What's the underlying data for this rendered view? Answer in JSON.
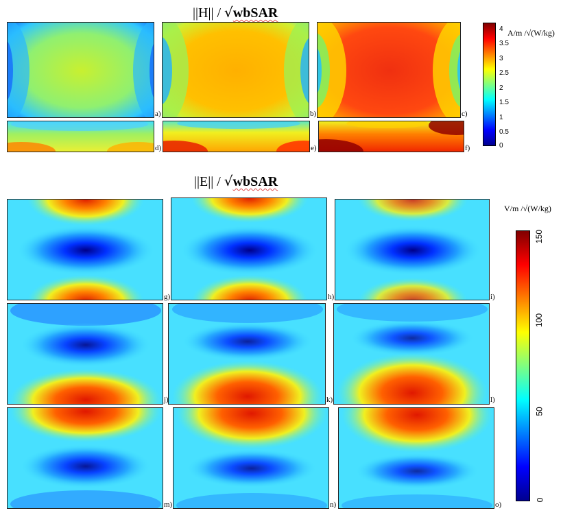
{
  "h_section": {
    "title_prefix": "||H|| / ",
    "title_sqrt": "√",
    "title_bold": "wbSAR",
    "colorbar": {
      "unit": "A/m /√(W/kg)",
      "ticks": [
        "4",
        "3.5",
        "3",
        "2.5",
        "2",
        "1.5",
        "1",
        "0.5",
        "0"
      ]
    },
    "panels": [
      {
        "label": "a)",
        "level": 2.1,
        "shape": "h-large"
      },
      {
        "label": "b)",
        "level": 2.9,
        "shape": "h-large"
      },
      {
        "label": "c)",
        "level": 3.5,
        "shape": "h-large"
      },
      {
        "label": "d)",
        "level": 2.0,
        "shape": "h-strip"
      },
      {
        "label": "e)",
        "level": 2.7,
        "shape": "h-strip"
      },
      {
        "label": "f)",
        "level": 3.3,
        "shape": "h-strip"
      }
    ]
  },
  "e_section": {
    "title_prefix": "||E|| / ",
    "title_sqrt": "√",
    "title_bold": "wbSAR",
    "colorbar": {
      "unit": "V/m /√(W/kg)",
      "ticks": [
        "150",
        "100",
        "50",
        "0"
      ]
    },
    "panels": [
      {
        "label": "g)",
        "pattern": "top-bottom"
      },
      {
        "label": "h)",
        "pattern": "top-bottom"
      },
      {
        "label": "i)",
        "pattern": "top-bottom"
      },
      {
        "label": "j)",
        "pattern": "bottom"
      },
      {
        "label": "k)",
        "pattern": "bottom"
      },
      {
        "label": "l)",
        "pattern": "bottom"
      },
      {
        "label": "m)",
        "pattern": "top"
      },
      {
        "label": "n)",
        "pattern": "top"
      },
      {
        "label": "o)",
        "pattern": "top"
      }
    ]
  }
}
